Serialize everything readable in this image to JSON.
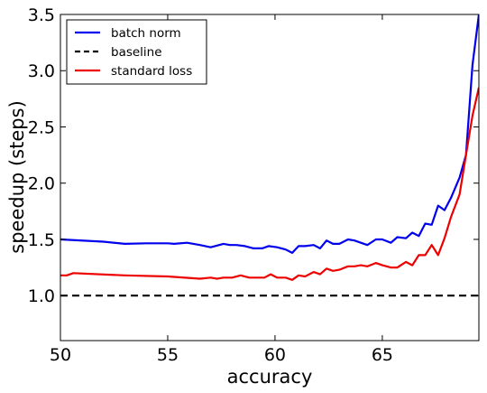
{
  "chart_data": {
    "type": "line",
    "title": "",
    "xlabel": "accuracy",
    "ylabel": "speedup (steps)",
    "xlim": [
      50,
      69.5
    ],
    "ylim": [
      0.6,
      3.5
    ],
    "x_ticks": [
      50,
      55,
      60,
      65
    ],
    "y_ticks": [
      1.0,
      1.5,
      2.0,
      2.5,
      3.0,
      3.5
    ],
    "x_tick_labels": [
      "50",
      "55",
      "60",
      "65"
    ],
    "y_tick_labels": [
      "1.0",
      "1.5",
      "2.0",
      "2.5",
      "3.0",
      "3.5"
    ],
    "grid": false,
    "legend_position": "top-left",
    "series": [
      {
        "name": "batch norm",
        "color": "#0000ee",
        "dash": "solid",
        "x": [
          50,
          52,
          53,
          54,
          55,
          55.3,
          55.9,
          56.5,
          57.0,
          57.6,
          57.9,
          58.2,
          58.6,
          59.0,
          59.4,
          59.7,
          60.1,
          60.5,
          60.8,
          61.1,
          61.4,
          61.8,
          62.1,
          62.4,
          62.7,
          63.0,
          63.4,
          63.7,
          64.0,
          64.3,
          64.7,
          65.0,
          65.4,
          65.7,
          66.1,
          66.4,
          66.7,
          67.0,
          67.3,
          67.6,
          67.9,
          68.2,
          68.6,
          68.9,
          69.2,
          69.5
        ],
        "y": [
          1.5,
          1.48,
          1.46,
          1.465,
          1.465,
          1.46,
          1.47,
          1.45,
          1.43,
          1.46,
          1.45,
          1.45,
          1.44,
          1.42,
          1.42,
          1.44,
          1.43,
          1.41,
          1.38,
          1.44,
          1.44,
          1.45,
          1.42,
          1.49,
          1.46,
          1.46,
          1.5,
          1.49,
          1.47,
          1.45,
          1.5,
          1.5,
          1.47,
          1.52,
          1.51,
          1.56,
          1.53,
          1.64,
          1.63,
          1.8,
          1.76,
          1.87,
          2.05,
          2.25,
          3.05,
          3.5
        ]
      },
      {
        "name": "baseline",
        "color": "#000000",
        "dash": "dashed",
        "x": [
          50,
          69.5
        ],
        "y": [
          1.0,
          1.0
        ]
      },
      {
        "name": "standard loss",
        "color": "#ee0000",
        "dash": "solid",
        "x": [
          50,
          50.3,
          50.6,
          53,
          55,
          56.5,
          57.0,
          57.3,
          57.6,
          58.0,
          58.4,
          58.8,
          59.2,
          59.5,
          59.8,
          60.1,
          60.5,
          60.8,
          61.1,
          61.4,
          61.8,
          62.1,
          62.4,
          62.7,
          63.0,
          63.4,
          63.7,
          64.0,
          64.3,
          64.7,
          65.0,
          65.4,
          65.7,
          66.1,
          66.4,
          66.7,
          67.0,
          67.3,
          67.6,
          67.9,
          68.2,
          68.6,
          68.9,
          69.2,
          69.5
        ],
        "y": [
          1.18,
          1.18,
          1.2,
          1.18,
          1.17,
          1.15,
          1.16,
          1.15,
          1.16,
          1.16,
          1.18,
          1.16,
          1.16,
          1.16,
          1.19,
          1.16,
          1.16,
          1.14,
          1.18,
          1.17,
          1.21,
          1.19,
          1.24,
          1.22,
          1.23,
          1.26,
          1.26,
          1.27,
          1.26,
          1.29,
          1.27,
          1.25,
          1.25,
          1.3,
          1.27,
          1.36,
          1.36,
          1.45,
          1.36,
          1.51,
          1.7,
          1.9,
          2.25,
          2.6,
          2.85
        ]
      }
    ]
  }
}
